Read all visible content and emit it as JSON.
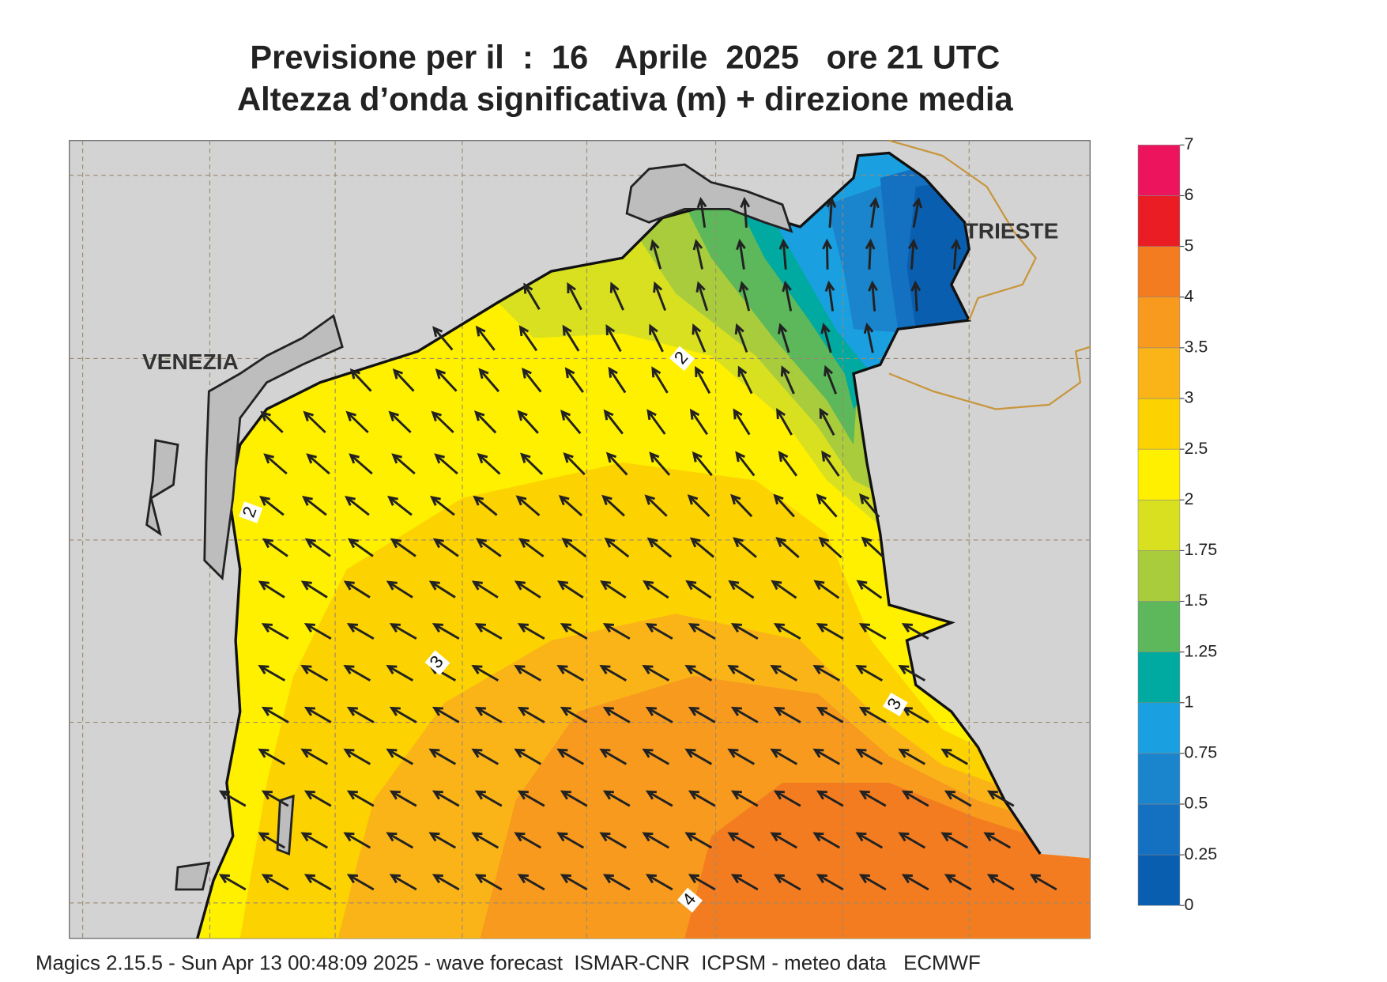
{
  "header": {
    "title_line1": "Previsione per il  :  16   Aprile  2025   ore 21 UTC",
    "title_line2": "Altezza d’onda significativa (m) + direzione media"
  },
  "map": {
    "place_labels": [
      "VENEZIA",
      "TRIESTE"
    ],
    "contour_labels": [
      2,
      2,
      3,
      3,
      4
    ]
  },
  "legend": {
    "levels": [
      0,
      0.25,
      0.5,
      0.75,
      1,
      1.25,
      1.5,
      1.75,
      2,
      2.5,
      3,
      3.5,
      4,
      5,
      6,
      7
    ],
    "colors": [
      "#0a5eb0",
      "#1470c0",
      "#1a84cc",
      "#1aa0e0",
      "#00aaa0",
      "#5cb85a",
      "#a8cc3c",
      "#d8e020",
      "#fff000",
      "#fcd200",
      "#fab418",
      "#f79a1e",
      "#f47c20",
      "#ea1c24",
      "#ec145c"
    ]
  },
  "footer": "Magics 2.15.5 - Sun Apr 13 00:48:09 2025 - wave forecast  ISMAR-CNR  ICPSM - meteo data   ECMWF"
}
